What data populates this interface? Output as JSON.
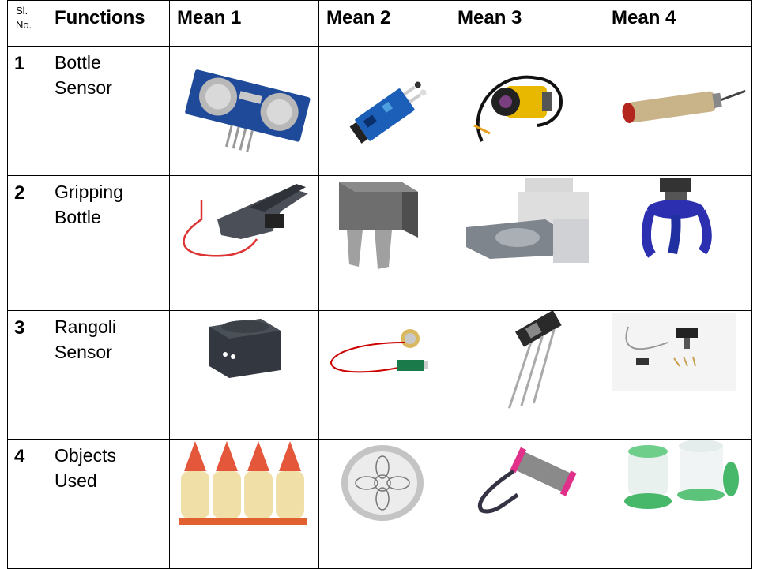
{
  "table": {
    "headers": {
      "slno": "Sl. No.",
      "functions": "Functions",
      "means": [
        "Mean 1",
        "Mean 2",
        "Mean 3",
        "Mean 4"
      ]
    },
    "rows": [
      {
        "no": "1",
        "function": "Bottle\nSensor",
        "means": [
          "ultrasonic-sensor-module-image",
          "ir-obstacle-sensor-module-image",
          "photoelectric-sensor-cable-image",
          "cylindrical-laser-sensor-image"
        ]
      },
      {
        "no": "2",
        "function": "Gripping\nBottle",
        "means": [
          "servo-gripper-bracket-image",
          "parallel-gripper-image",
          "pneumatic-gripper-block-image",
          "three-finger-soft-gripper-image"
        ]
      },
      {
        "no": "3",
        "function": "Rangoli\nSensor",
        "means": [
          "color-sensor-box-image",
          "piezo-sensor-module-image",
          "ir-receiver-component-image",
          "proximity-sensor-kit-image"
        ]
      },
      {
        "no": "4",
        "function": "Objects\nUsed",
        "means": [
          "rangoli-powder-cones-image",
          "rangoli-stencil-plate-image",
          "rangoli-roller-tool-image",
          "rangoli-sieve-containers-image"
        ]
      }
    ]
  },
  "colors": {
    "border": "#000000",
    "text": "#000000",
    "background": "#ffffff"
  }
}
